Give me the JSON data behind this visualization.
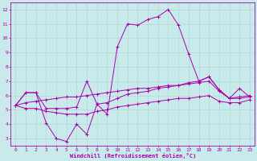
{
  "xlabel": "Windchill (Refroidissement éolien,°C)",
  "ylabel": "",
  "background_color": "#c8eaea",
  "grid_color": "#aad4d4",
  "line_color": "#aa00aa",
  "x_ticks": [
    0,
    1,
    2,
    3,
    4,
    5,
    6,
    7,
    8,
    9,
    10,
    11,
    12,
    13,
    14,
    15,
    16,
    17,
    18,
    19,
    20,
    21,
    22,
    23
  ],
  "y_ticks": [
    3,
    4,
    5,
    6,
    7,
    8,
    9,
    10,
    11,
    12
  ],
  "xlim": [
    -0.5,
    23.5
  ],
  "ylim": [
    2.5,
    12.5
  ],
  "line1_y": [
    5.3,
    6.2,
    6.2,
    4.1,
    3.0,
    2.8,
    4.0,
    3.3,
    5.4,
    4.7,
    9.4,
    11.0,
    10.9,
    11.3,
    11.5,
    12.0,
    10.9,
    8.9,
    7.0,
    7.3,
    6.4,
    5.8,
    6.5,
    5.9
  ],
  "line2_y": [
    5.3,
    6.2,
    6.2,
    5.1,
    5.1,
    5.1,
    5.2,
    7.0,
    5.4,
    5.5,
    5.8,
    6.1,
    6.2,
    6.3,
    6.5,
    6.6,
    6.7,
    6.9,
    7.0,
    7.3,
    6.4,
    5.8,
    5.8,
    5.9
  ],
  "line3_y": [
    5.3,
    5.5,
    5.6,
    5.7,
    5.8,
    5.9,
    5.9,
    6.0,
    6.1,
    6.2,
    6.3,
    6.4,
    6.5,
    6.5,
    6.6,
    6.7,
    6.7,
    6.8,
    6.9,
    7.0,
    6.3,
    5.8,
    5.9,
    6.0
  ],
  "line4_y": [
    5.3,
    5.1,
    5.1,
    4.9,
    4.8,
    4.7,
    4.7,
    4.7,
    4.9,
    5.0,
    5.2,
    5.3,
    5.4,
    5.5,
    5.6,
    5.7,
    5.8,
    5.8,
    5.9,
    6.0,
    5.6,
    5.5,
    5.5,
    5.7
  ],
  "tick_fontsize": 4.5,
  "xlabel_fontsize": 5,
  "linewidth": 0.7,
  "markersize": 2.5
}
